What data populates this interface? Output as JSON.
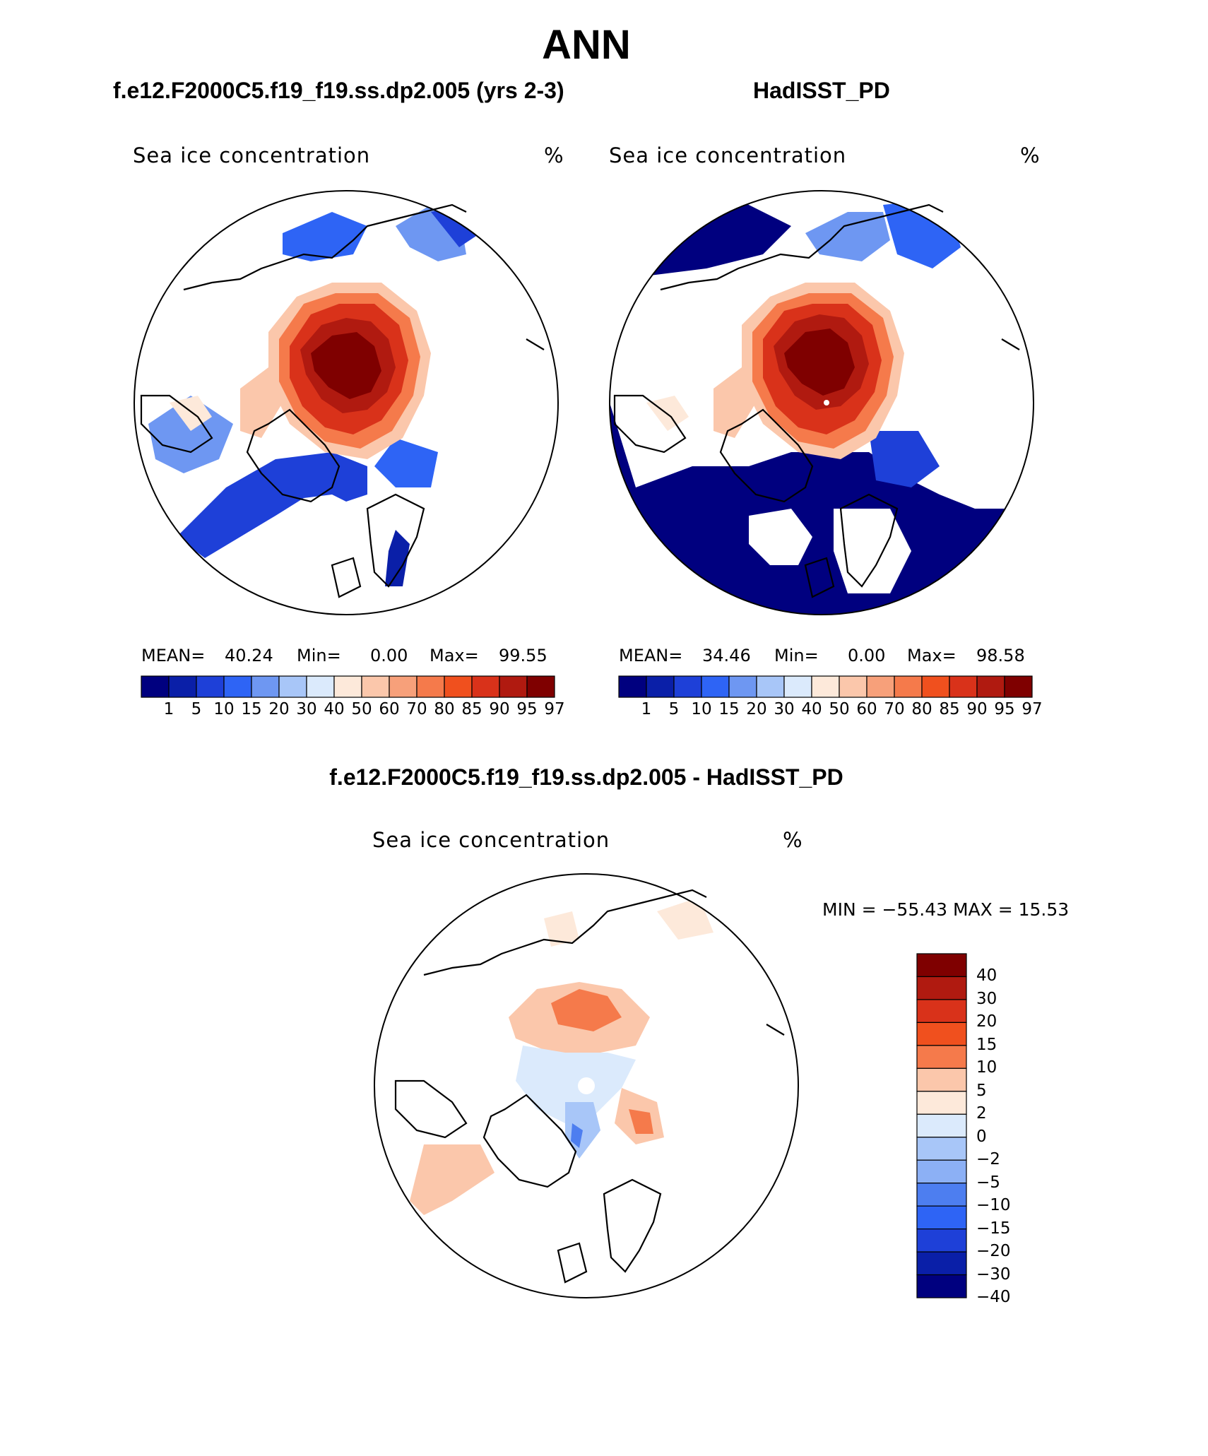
{
  "title": "ANN",
  "panels": [
    {
      "case_title": "f.e12.F2000C5.f19_f19.ss.dp2.005 (yrs 2-3)",
      "variable": "Sea ice concentration",
      "units": "%",
      "stats": {
        "mean_label": "MEAN=",
        "mean": "40.24",
        "min_label": "Min=",
        "min": "0.00",
        "max_label": "Max=",
        "max": "99.55"
      }
    },
    {
      "case_title": "HadISST_PD",
      "variable": "Sea ice concentration",
      "units": "%",
      "stats": {
        "mean_label": "MEAN=",
        "mean": "34.46",
        "min_label": "Min=",
        "min": "0.00",
        "max_label": "Max=",
        "max": "98.58"
      }
    }
  ],
  "diff": {
    "case_title": "f.e12.F2000C5.f19_f19.ss.dp2.005 - HadISST_PD",
    "variable": "Sea ice concentration",
    "units": "%",
    "minmax_text": "MIN = −55.43 MAX =   15.53"
  },
  "colorbar": {
    "colors": [
      "#00007f",
      "#0a1fa8",
      "#1e40d8",
      "#2e64f5",
      "#6e97f2",
      "#a8c6f8",
      "#dbeafc",
      "#fde9da",
      "#fbc7ab",
      "#f7a07a",
      "#f57a4b",
      "#f0501e",
      "#d9321a",
      "#b01a10",
      "#7f0000"
    ],
    "labels": [
      "1",
      "5",
      "10",
      "15",
      "20",
      "30",
      "40",
      "50",
      "60",
      "70",
      "80",
      "85",
      "90",
      "95",
      "97"
    ]
  },
  "diff_colorbar": {
    "colors": [
      "#7f0000",
      "#b01a10",
      "#d9321a",
      "#f0501e",
      "#f57a4b",
      "#fbc7ab",
      "#fde9da",
      "#dbeafc",
      "#a8c6f8",
      "#8cb0f5",
      "#4d7ef0",
      "#2e64f5",
      "#1e40d8",
      "#0a1fa8",
      "#00007f"
    ],
    "labels": [
      "40",
      "30",
      "20",
      "15",
      "10",
      "5",
      "2",
      "0",
      "−2",
      "−5",
      "−10",
      "−15",
      "−20",
      "−30",
      "−40"
    ]
  },
  "chart_data": [
    {
      "type": "heatmap",
      "title": "f.e12.F2000C5.f19_f19.ss.dp2.005 (yrs 2-3)",
      "variable": "Sea ice concentration",
      "units": "%",
      "mean": 40.24,
      "min": 0.0,
      "max": 99.55,
      "levels": [
        1,
        5,
        10,
        15,
        20,
        30,
        40,
        50,
        60,
        70,
        80,
        85,
        90,
        95,
        97
      ]
    },
    {
      "type": "heatmap",
      "title": "HadISST_PD",
      "variable": "Sea ice concentration",
      "units": "%",
      "mean": 34.46,
      "min": 0.0,
      "max": 98.58,
      "levels": [
        1,
        5,
        10,
        15,
        20,
        30,
        40,
        50,
        60,
        70,
        80,
        85,
        90,
        95,
        97
      ]
    },
    {
      "type": "heatmap",
      "title": "f.e12.F2000C5.f19_f19.ss.dp2.005 - HadISST_PD",
      "variable": "Sea ice concentration",
      "units": "%",
      "min": -55.43,
      "max": 15.53,
      "levels": [
        -40,
        -30,
        -20,
        -15,
        -10,
        -5,
        -2,
        0,
        2,
        5,
        10,
        15,
        20,
        30,
        40
      ]
    }
  ]
}
